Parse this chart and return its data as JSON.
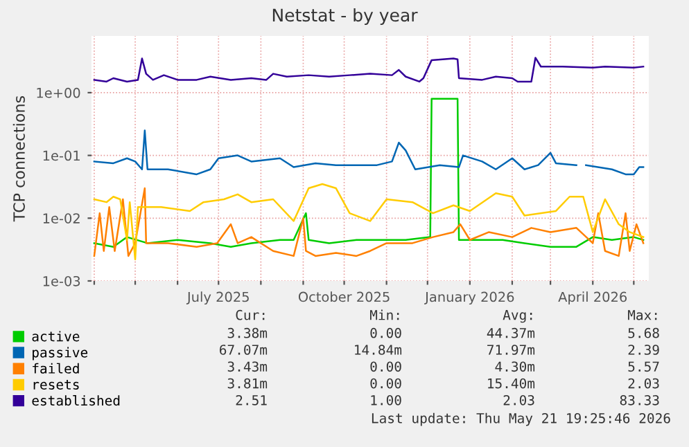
{
  "chart_data": {
    "type": "line",
    "title": "Netstat - by year",
    "ylabel": "TCP connections",
    "log": "y",
    "grid": true,
    "legend": "bottom",
    "xlim": [
      "2025-03-30",
      "2026-05-12"
    ],
    "xticks": [
      {
        "value": "2025-04-01",
        "label": null
      },
      {
        "value": "2025-05-01",
        "label": null
      },
      {
        "value": "2025-06-01",
        "label": null
      },
      {
        "value": "2025-07-01",
        "label": "July 2025"
      },
      {
        "value": "2025-08-01",
        "label": null
      },
      {
        "value": "2025-09-01",
        "label": null
      },
      {
        "value": "2025-10-01",
        "label": "October 2025"
      },
      {
        "value": "2025-11-01",
        "label": null
      },
      {
        "value": "2025-12-01",
        "label": null
      },
      {
        "value": "2026-01-01",
        "label": "January 2026"
      },
      {
        "value": "2026-02-01",
        "label": null
      },
      {
        "value": "2026-03-01",
        "label": null
      },
      {
        "value": "2026-04-01",
        "label": "April 2026"
      },
      {
        "value": "2026-05-01",
        "label": null
      }
    ],
    "ylim": [
      0.001,
      8
    ],
    "yticks": [
      {
        "value": 0.001,
        "label": "1e-03"
      },
      {
        "value": 0.01,
        "label": "1e-02"
      },
      {
        "value": 0.1,
        "label": "1e-01"
      },
      {
        "value": 1,
        "label": "1e+00"
      }
    ],
    "series": [
      {
        "name": "active",
        "color": "#00cc00",
        "x": [
          "2025-04-01",
          "2025-04-15",
          "2025-04-25",
          "2025-05-10",
          "2025-06-01",
          "2025-06-25",
          "2025-07-10",
          "2025-07-25",
          "2025-08-15",
          "2025-08-25",
          "2025-09-03",
          "2025-09-05",
          "2025-09-20",
          "2025-10-10",
          "2025-11-01",
          "2025-11-15",
          "2025-12-03",
          "2025-12-04",
          "2025-12-23",
          "2025-12-24",
          "2026-01-10",
          "2026-01-25",
          "2026-02-10",
          "2026-03-01",
          "2026-03-20",
          "2026-04-01",
          "2026-04-15",
          "2026-05-01",
          "2026-05-08"
        ],
        "values": [
          0.004,
          0.0035,
          0.005,
          0.004,
          0.0045,
          0.004,
          0.0035,
          0.004,
          0.0045,
          0.0045,
          0.012,
          0.0045,
          0.004,
          0.0045,
          0.0045,
          0.0045,
          0.005,
          0.8,
          0.8,
          0.0045,
          0.0045,
          0.0045,
          0.004,
          0.0035,
          0.0035,
          0.005,
          0.0045,
          0.005,
          0.0045
        ]
      },
      {
        "name": "passive",
        "color": "#0066b3",
        "x": [
          "2025-04-01",
          "2025-04-15",
          "2025-04-25",
          "2025-05-01",
          "2025-05-06",
          "2025-05-08",
          "2025-05-10",
          "2025-05-25",
          "2025-06-15",
          "2025-06-25",
          "2025-07-01",
          "2025-07-15",
          "2025-07-25",
          "2025-08-15",
          "2025-08-25",
          "2025-09-10",
          "2025-09-25",
          "2025-10-10",
          "2025-10-25",
          "2025-11-05",
          "2025-11-10",
          "2025-11-15",
          "2025-11-22",
          "2025-12-10",
          "2025-12-24",
          "2025-12-27",
          "2026-01-10",
          "2026-01-20",
          "2026-02-01",
          "2026-02-10",
          "2026-02-20",
          "2026-03-01",
          "2026-03-05",
          "2026-03-20",
          "2026-03-24",
          "2026-03-27",
          "2026-04-15",
          "2026-04-25",
          "2026-05-01",
          "2026-05-05",
          "2026-05-08"
        ],
        "values": [
          0.08,
          0.075,
          0.09,
          0.08,
          0.06,
          0.25,
          0.06,
          0.06,
          0.05,
          0.06,
          0.09,
          0.1,
          0.08,
          0.09,
          0.065,
          0.075,
          0.07,
          0.07,
          0.07,
          0.08,
          0.16,
          0.12,
          0.06,
          0.07,
          0.065,
          0.1,
          0.08,
          0.06,
          0.09,
          0.06,
          0.07,
          0.11,
          0.075,
          0.07,
          null,
          0.07,
          0.06,
          0.05,
          0.05,
          0.065,
          0.065
        ]
      },
      {
        "name": "failed",
        "color": "#ff8000",
        "x": [
          "2025-04-01",
          "2025-04-05",
          "2025-04-08",
          "2025-04-12",
          "2025-04-16",
          "2025-04-22",
          "2025-04-26",
          "2025-05-01",
          "2025-05-08",
          "2025-05-09",
          "2025-05-25",
          "2025-06-15",
          "2025-06-30",
          "2025-07-10",
          "2025-07-15",
          "2025-07-25",
          "2025-08-10",
          "2025-08-25",
          "2025-09-01",
          "2025-09-03",
          "2025-09-10",
          "2025-09-25",
          "2025-10-10",
          "2025-10-20",
          "2025-11-01",
          "2025-11-20",
          "2025-12-05",
          "2025-12-20",
          "2025-12-25",
          "2026-01-01",
          "2026-01-15",
          "2026-02-01",
          "2026-02-15",
          "2026-03-01",
          "2026-03-20",
          "2026-04-01",
          "2026-04-05",
          "2026-04-10",
          "2026-04-20",
          "2026-04-25",
          "2026-04-28",
          "2026-05-03",
          "2026-05-08"
        ],
        "values": [
          0.0025,
          0.012,
          0.003,
          0.015,
          0.003,
          0.02,
          0.0025,
          0.004,
          0.03,
          0.004,
          0.004,
          0.0035,
          0.004,
          0.008,
          0.004,
          0.005,
          0.003,
          0.0025,
          0.01,
          0.003,
          0.0025,
          0.0028,
          0.0025,
          0.003,
          0.004,
          0.004,
          0.005,
          0.006,
          0.008,
          0.0045,
          0.006,
          0.005,
          0.007,
          0.006,
          0.007,
          0.004,
          0.012,
          0.003,
          0.0025,
          0.012,
          0.003,
          0.008,
          0.004
        ]
      },
      {
        "name": "resets",
        "color": "#ffcc00",
        "x": [
          "2025-04-01",
          "2025-04-10",
          "2025-04-15",
          "2025-04-20",
          "2025-04-25",
          "2025-04-27",
          "2025-05-01",
          "2025-05-03",
          "2025-05-20",
          "2025-06-10",
          "2025-06-20",
          "2025-07-05",
          "2025-07-15",
          "2025-07-25",
          "2025-08-10",
          "2025-08-25",
          "2025-09-05",
          "2025-09-15",
          "2025-09-25",
          "2025-10-05",
          "2025-10-20",
          "2025-11-01",
          "2025-11-20",
          "2025-12-05",
          "2025-12-20",
          "2026-01-01",
          "2026-01-20",
          "2026-02-01",
          "2026-02-10",
          "2026-03-05",
          "2026-03-15",
          "2026-03-25",
          "2026-04-01",
          "2026-04-10",
          "2026-04-20",
          "2026-04-28",
          "2026-05-08"
        ],
        "values": [
          0.02,
          0.018,
          0.022,
          0.02,
          0.0045,
          0.018,
          0.0022,
          0.015,
          0.015,
          0.013,
          0.018,
          0.02,
          0.024,
          0.018,
          0.02,
          0.009,
          0.03,
          0.035,
          0.03,
          0.012,
          0.009,
          0.02,
          0.018,
          0.012,
          0.016,
          0.013,
          0.025,
          0.022,
          0.011,
          0.013,
          0.022,
          0.022,
          0.006,
          0.02,
          0.008,
          0.006,
          0.005
        ]
      },
      {
        "name": "established",
        "color": "#330099",
        "x": [
          "2025-04-01",
          "2025-04-10",
          "2025-04-15",
          "2025-04-25",
          "2025-05-03",
          "2025-05-06",
          "2025-05-09",
          "2025-05-14",
          "2025-05-22",
          "2025-06-01",
          "2025-06-15",
          "2025-06-25",
          "2025-07-10",
          "2025-07-25",
          "2025-08-05",
          "2025-08-10",
          "2025-08-20",
          "2025-09-05",
          "2025-09-20",
          "2025-10-05",
          "2025-10-20",
          "2025-11-05",
          "2025-11-10",
          "2025-11-15",
          "2025-11-25",
          "2025-11-28",
          "2025-12-04",
          "2025-12-20",
          "2025-12-23",
          "2025-12-24",
          "2026-01-10",
          "2026-01-20",
          "2026-02-01",
          "2026-02-05",
          "2026-02-15",
          "2026-02-18",
          "2026-02-22",
          "2026-03-10",
          "2026-04-01",
          "2026-04-10",
          "2026-05-01",
          "2026-05-08"
        ],
        "values": [
          1.6,
          1.5,
          1.7,
          1.5,
          1.6,
          3.5,
          2.0,
          1.6,
          1.9,
          1.6,
          1.6,
          1.8,
          1.6,
          1.7,
          1.6,
          2.0,
          1.8,
          1.9,
          1.8,
          1.9,
          2.0,
          1.9,
          2.3,
          1.8,
          1.5,
          1.7,
          3.3,
          3.5,
          3.4,
          1.7,
          1.6,
          1.8,
          1.7,
          1.5,
          1.5,
          3.6,
          2.6,
          2.6,
          2.5,
          2.6,
          2.5,
          2.6
        ]
      }
    ],
    "annotations": [
      "Cur:",
      "Min:",
      "Avg:",
      "Max:",
      "3.38m",
      "0.00",
      "44.37m",
      "5.68",
      "67.07m",
      "14.84m",
      "71.97m",
      "2.39",
      "3.43m",
      "0.00",
      "4.30m",
      "5.57",
      "3.81m",
      "0.00",
      "15.40m",
      "2.03",
      "2.51",
      "1.00",
      "2.03",
      "83.33",
      "Last update: Thu May 21 19:25:46 2026"
    ]
  }
}
